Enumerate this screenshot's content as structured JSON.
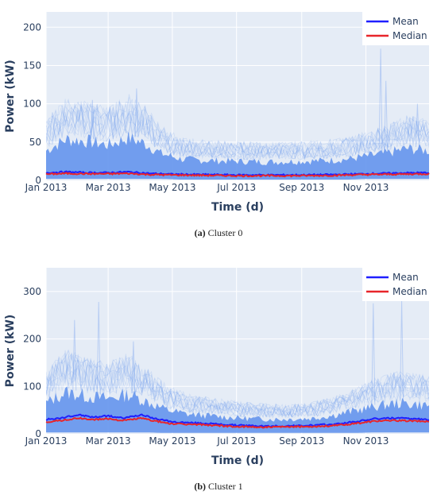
{
  "figure": {
    "panels": [
      {
        "caption_letter": "(a)",
        "caption_text": "Cluster 0"
      },
      {
        "caption_letter": "(b)",
        "caption_text": "Cluster 1"
      }
    ]
  },
  "chart_data": [
    {
      "type": "line",
      "title": "",
      "xlabel": "Time (d)",
      "ylabel": "Power (kW)",
      "xlim": [
        "2013-01-01",
        "2013-12-31"
      ],
      "ylim": [
        0,
        220
      ],
      "xticks": [
        "Jan 2013",
        "Mar 2013",
        "May 2013",
        "Jul 2013",
        "Sep 2013",
        "Nov 2013"
      ],
      "xtick_dates": [
        "2013-01-01",
        "2013-03-01",
        "2013-05-01",
        "2013-07-01",
        "2013-09-01",
        "2013-11-01"
      ],
      "yticks": [
        0,
        50,
        100,
        150,
        200
      ],
      "grid": true,
      "legend_position": "top-right",
      "background_color": "#e5ecf6",
      "individual_traces_color": "#6495ed",
      "envelope": {
        "x": [
          "2013-01-01",
          "2013-01-20",
          "2013-02-10",
          "2013-03-01",
          "2013-03-20",
          "2013-04-05",
          "2013-04-20",
          "2013-05-10",
          "2013-06-01",
          "2013-07-01",
          "2013-08-01",
          "2013-09-01",
          "2013-09-25",
          "2013-10-15",
          "2013-11-01",
          "2013-11-20",
          "2013-12-10",
          "2013-12-31"
        ],
        "upper": [
          42,
          58,
          55,
          50,
          60,
          52,
          38,
          30,
          28,
          27,
          26,
          27,
          28,
          30,
          34,
          38,
          45,
          42
        ],
        "lower": [
          2,
          2,
          2,
          2,
          2,
          2,
          2,
          1,
          1,
          1,
          1,
          1,
          1,
          1,
          2,
          2,
          2,
          2
        ]
      },
      "spikes": [
        {
          "x": "2013-02-14",
          "y": 105
        },
        {
          "x": "2013-03-28",
          "y": 120
        },
        {
          "x": "2013-11-15",
          "y": 172
        },
        {
          "x": "2013-11-20",
          "y": 130
        },
        {
          "x": "2013-12-20",
          "y": 100
        }
      ],
      "series": [
        {
          "name": "Mean",
          "color": "#1f1fff",
          "x": [
            "2013-01-01",
            "2013-01-20",
            "2013-02-10",
            "2013-03-01",
            "2013-03-20",
            "2013-04-10",
            "2013-05-01",
            "2013-06-01",
            "2013-07-01",
            "2013-08-01",
            "2013-09-01",
            "2013-10-01",
            "2013-11-01",
            "2013-12-01",
            "2013-12-31"
          ],
          "values": [
            10,
            11,
            10,
            10,
            11,
            9,
            8,
            7.5,
            7,
            7,
            7,
            7.5,
            8.5,
            9.5,
            10
          ]
        },
        {
          "name": "Median",
          "color": "#e8252a",
          "x": [
            "2013-01-01",
            "2013-01-20",
            "2013-02-10",
            "2013-03-01",
            "2013-03-20",
            "2013-04-10",
            "2013-05-01",
            "2013-06-01",
            "2013-07-01",
            "2013-08-01",
            "2013-09-01",
            "2013-10-01",
            "2013-11-01",
            "2013-12-01",
            "2013-12-31"
          ],
          "values": [
            8,
            9,
            8.5,
            8.5,
            9,
            7.5,
            7,
            6.5,
            6,
            6,
            6,
            6.5,
            7.5,
            8,
            8.5
          ]
        }
      ]
    },
    {
      "type": "line",
      "title": "",
      "xlabel": "Time (d)",
      "ylabel": "Power (kW)",
      "xlim": [
        "2013-01-01",
        "2013-12-31"
      ],
      "ylim": [
        0,
        350
      ],
      "xticks": [
        "Jan 2013",
        "Mar 2013",
        "May 2013",
        "Jul 2013",
        "Sep 2013",
        "Nov 2013"
      ],
      "xtick_dates": [
        "2013-01-01",
        "2013-03-01",
        "2013-05-01",
        "2013-07-01",
        "2013-09-01",
        "2013-11-01"
      ],
      "yticks": [
        0,
        100,
        200,
        300
      ],
      "grid": true,
      "legend_position": "top-right",
      "background_color": "#e5ecf6",
      "individual_traces_color": "#6495ed",
      "envelope": {
        "x": [
          "2013-01-01",
          "2013-01-20",
          "2013-02-10",
          "2013-03-01",
          "2013-03-20",
          "2013-04-05",
          "2013-04-25",
          "2013-05-15",
          "2013-06-10",
          "2013-07-10",
          "2013-08-10",
          "2013-09-10",
          "2013-10-01",
          "2013-10-20",
          "2013-11-10",
          "2013-12-01",
          "2013-12-31"
        ],
        "upper": [
          70,
          95,
          85,
          80,
          90,
          75,
          55,
          45,
          40,
          35,
          33,
          35,
          42,
          52,
          62,
          70,
          65
        ],
        "lower": [
          3,
          3,
          3,
          3,
          3,
          3,
          2,
          2,
          2,
          2,
          2,
          2,
          2,
          2,
          3,
          3,
          3
        ]
      },
      "spikes": [
        {
          "x": "2013-01-28",
          "y": 240
        },
        {
          "x": "2013-02-20",
          "y": 278
        },
        {
          "x": "2013-03-25",
          "y": 195
        },
        {
          "x": "2013-11-08",
          "y": 275
        },
        {
          "x": "2013-12-05",
          "y": 280
        }
      ],
      "series": [
        {
          "name": "Mean",
          "color": "#1f1fff",
          "x": [
            "2013-01-01",
            "2013-01-15",
            "2013-02-01",
            "2013-02-15",
            "2013-03-01",
            "2013-03-15",
            "2013-04-01",
            "2013-04-15",
            "2013-05-01",
            "2013-06-01",
            "2013-07-01",
            "2013-08-01",
            "2013-09-01",
            "2013-10-01",
            "2013-10-20",
            "2013-11-10",
            "2013-12-01",
            "2013-12-31"
          ],
          "values": [
            30,
            33,
            40,
            35,
            38,
            33,
            40,
            32,
            25,
            22,
            18,
            16,
            17,
            20,
            25,
            32,
            33,
            30
          ]
        },
        {
          "name": "Median",
          "color": "#e8252a",
          "x": [
            "2013-01-01",
            "2013-01-15",
            "2013-02-01",
            "2013-02-15",
            "2013-03-01",
            "2013-03-15",
            "2013-04-01",
            "2013-04-15",
            "2013-05-01",
            "2013-06-01",
            "2013-07-01",
            "2013-08-01",
            "2013-09-01",
            "2013-10-01",
            "2013-10-20",
            "2013-11-10",
            "2013-12-01",
            "2013-12-31"
          ],
          "values": [
            25,
            28,
            33,
            30,
            32,
            28,
            33,
            27,
            21,
            19,
            15,
            14,
            15,
            17,
            21,
            27,
            28,
            26
          ]
        }
      ]
    }
  ]
}
